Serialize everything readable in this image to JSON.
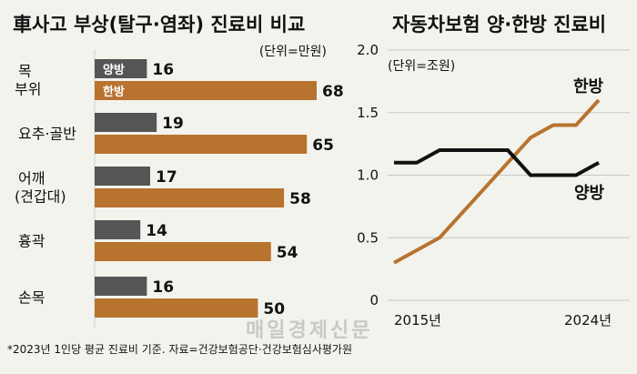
{
  "chart_data": [
    {
      "type": "bar",
      "title": "車사고 부상(탈구·염좌) 진료비 비교",
      "unit": "(단위=만원)",
      "categories": [
        "목 부위",
        "요추·골반",
        "어깨 (견갑대)",
        "흉곽",
        "손목"
      ],
      "series": [
        {
          "name": "양방",
          "values": [
            16,
            19,
            17,
            14,
            16
          ],
          "color": "#555555"
        },
        {
          "name": "한방",
          "values": [
            68,
            65,
            58,
            54,
            50
          ],
          "color": "#b8732f"
        }
      ],
      "xlim": [
        0,
        75
      ]
    },
    {
      "type": "line",
      "title": "자동차보험 양·한방 진료비",
      "unit": "(단위=조원)",
      "x": [
        2015,
        2016,
        2017,
        2018,
        2019,
        2020,
        2021,
        2022,
        2023,
        2024
      ],
      "x_tick_labels": [
        "2015년",
        "2024년"
      ],
      "yticks": [
        "2.0",
        "1.5",
        "1.0",
        "0.5",
        "0"
      ],
      "ylim": [
        0,
        2.0
      ],
      "series": [
        {
          "name": "한방",
          "values": [
            0.3,
            0.4,
            0.5,
            0.7,
            0.9,
            1.1,
            1.3,
            1.4,
            1.4,
            1.6
          ],
          "color": "#b8732f"
        },
        {
          "name": "양방",
          "values": [
            1.1,
            1.1,
            1.2,
            1.2,
            1.2,
            1.2,
            1.0,
            1.0,
            1.0,
            1.1
          ],
          "color": "#111111"
        }
      ]
    }
  ],
  "footnote": "*2023년 1인당 평균 진료비 기준. 자료=건강보험공단·건강보험심사평가원",
  "watermark": "매일경제신문"
}
